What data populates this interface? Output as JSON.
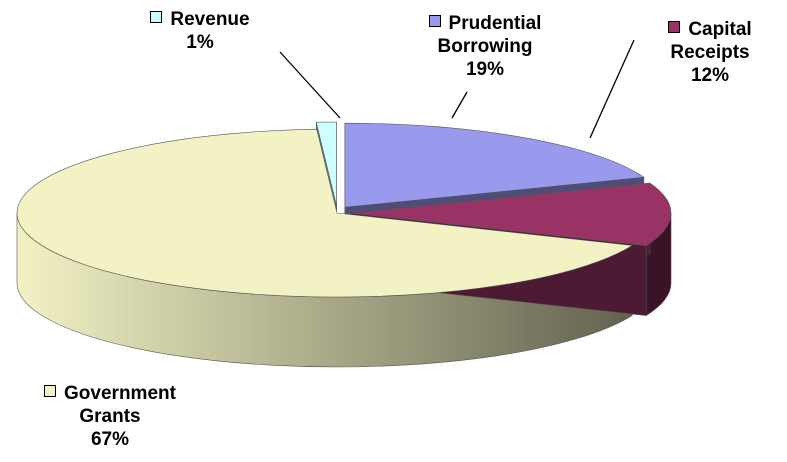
{
  "chart_data": {
    "type": "pie3d",
    "categories": [
      "Prudential Borrowing",
      "Capital Receipts",
      "Government Grants",
      "Revenue"
    ],
    "values": [
      19,
      12,
      67,
      1
    ],
    "value_labels": [
      "19%",
      "12%",
      "67%",
      "1%"
    ],
    "colors": [
      "#9999ee",
      "#993366",
      "#f2f2c4",
      "#ccffff"
    ]
  }
}
